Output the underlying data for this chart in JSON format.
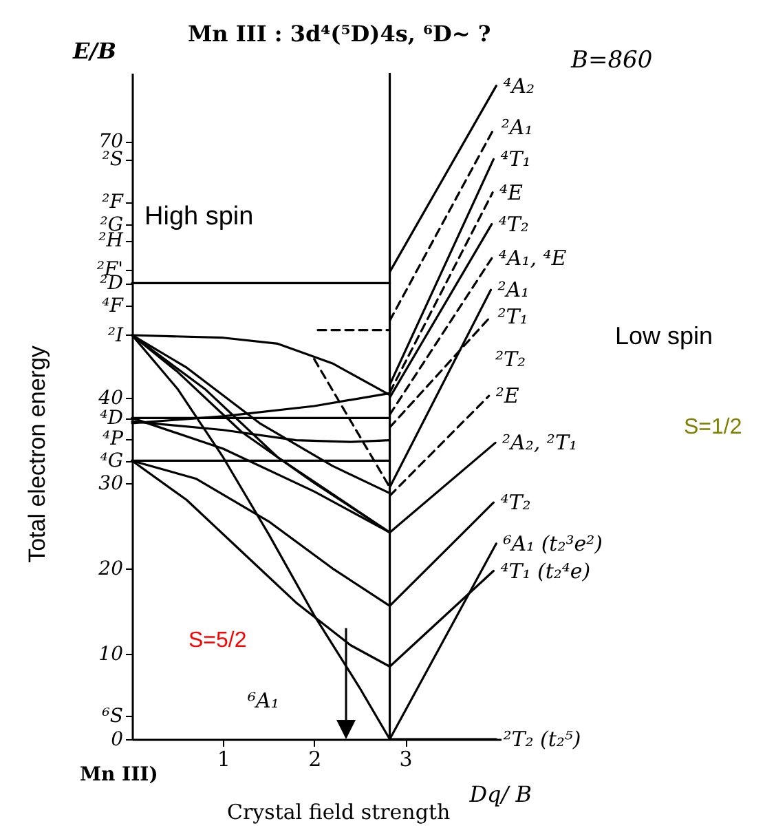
{
  "chart_data": {
    "type": "line",
    "title": "Mn III : 3d⁴(⁵D)4s, ⁶D~ ?",
    "xlabel": "Dq/ B",
    "ylabel": "E/B",
    "xlim": [
      0,
      4.05
    ],
    "xticks": [
      1,
      2,
      3
    ],
    "ylim": [
      0,
      78
    ],
    "yticks": [
      0,
      {
        "value": 2.7,
        "label": "⁶S"
      },
      10,
      20,
      30,
      {
        "value": 32.6,
        "label": "⁴G"
      },
      {
        "value": 35.2,
        "label": "⁴P"
      },
      {
        "value": 37.6,
        "label": "⁴D"
      },
      40,
      {
        "value": 47.3,
        "label": "²I"
      },
      {
        "value": 50.8,
        "label": "⁴F"
      },
      {
        "value": 53.4,
        "label": "²D"
      },
      {
        "value": 55,
        "label": "²F'"
      },
      {
        "value": 58.4,
        "label": "²H"
      },
      {
        "value": 60.3,
        "label": "²G"
      },
      {
        "value": 62.9,
        "label": "²F"
      },
      {
        "value": 67.9,
        "label": "²S"
      },
      70
    ],
    "grid": false,
    "marker": "none",
    "ref_lines": [
      {
        "axis": "x",
        "value": 2.83
      }
    ],
    "series": [
      {
        "color": "#000000",
        "line_style": "solid",
        "x": [
          0,
          2.83
        ],
        "values": [
          53.4,
          53.4
        ]
      },
      {
        "color": "#000000",
        "line_style": "solid",
        "x": [
          0,
          2.83
        ],
        "values": [
          37.6,
          37.6
        ]
      },
      {
        "color": "#000000",
        "line_style": "solid",
        "x": [
          0,
          2.83
        ],
        "values": [
          32.6,
          32.6
        ]
      },
      {
        "color": "#000000",
        "line_style": "solid",
        "x": [
          0,
          1,
          1.6,
          2.2,
          2.83
        ],
        "values": [
          47.3,
          47,
          46.3,
          44,
          40.3
        ]
      },
      {
        "color": "#000000",
        "line_style": "solid",
        "x": [
          0,
          1,
          2,
          2.83
        ],
        "values": [
          37,
          37.8,
          39,
          40.5
        ]
      },
      {
        "color": "#000000",
        "line_style": "solid",
        "x": [
          0,
          1,
          1.8,
          2.4,
          2.83
        ],
        "values": [
          37.2,
          36.2,
          35,
          34.8,
          35
        ]
      },
      {
        "color": "#000000",
        "line_style": "solid",
        "x": [
          0,
          0.5,
          1.2,
          2,
          2.83
        ],
        "values": [
          47.3,
          43,
          36,
          30,
          24.2
        ]
      },
      {
        "color": "#000000",
        "line_style": "solid",
        "x": [
          0,
          0.8,
          1.6,
          2.83
        ],
        "values": [
          47.3,
          41,
          33,
          24.2
        ]
      },
      {
        "color": "#000000",
        "line_style": "solid",
        "x": [
          0,
          0.6,
          1.4,
          2.2,
          2.83
        ],
        "values": [
          47.3,
          43.5,
          37,
          32,
          28.8
        ]
      },
      {
        "color": "#000000",
        "line_style": "solid",
        "x": [
          0,
          0.5,
          1,
          1.5,
          2,
          2.5,
          2.83
        ],
        "values": [
          47.3,
          41,
          33,
          24,
          14.5,
          6,
          0
        ]
      },
      {
        "color": "#000000",
        "line_style": "solid",
        "x": [
          0,
          0.7,
          1.5,
          2.2,
          2.83
        ],
        "values": [
          32.6,
          30.5,
          25.5,
          20,
          15.6
        ]
      },
      {
        "color": "#000000",
        "line_style": "solid",
        "x": [
          0,
          0.6,
          1.2,
          1.8,
          2.4,
          2.83
        ],
        "values": [
          32.6,
          28,
          22,
          16,
          11,
          8.5
        ]
      },
      {
        "color": "#000000",
        "line_style": "solid",
        "x": [
          0,
          1,
          2,
          2.83
        ],
        "values": [
          37.6,
          34,
          29,
          24.2
        ]
      },
      {
        "color": "#000000",
        "line_style": "dashed",
        "x": [
          2.04,
          2.83
        ],
        "values": [
          47.9,
          47.9
        ]
      },
      {
        "color": "#000000",
        "line_style": "dashed",
        "x": [
          2.0,
          2.83
        ],
        "values": [
          44.5,
          29.5
        ]
      },
      {
        "name": "⁴A₂",
        "color": "#000000",
        "line_style": "solid",
        "x": [
          2.83,
          4.0
        ],
        "values": [
          54.7,
          76.5
        ]
      },
      {
        "name": "²A₁",
        "color": "#000000",
        "line_style": "dashed",
        "x": [
          2.83,
          3.98
        ],
        "values": [
          49,
          71.6
        ]
      },
      {
        "name": "⁴T₁",
        "color": "#000000",
        "line_style": "solid",
        "x": [
          2.83,
          3.97
        ],
        "values": [
          41.5,
          67.9
        ]
      },
      {
        "name": "⁴E",
        "color": "#000000",
        "line_style": "dashed",
        "x": [
          2.83,
          3.96
        ],
        "values": [
          40.6,
          64
        ]
      },
      {
        "name": "⁴T₂",
        "color": "#000000",
        "line_style": "solid",
        "x": [
          2.83,
          3.95
        ],
        "values": [
          40,
          60.3
        ]
      },
      {
        "name": "⁴A₁, ⁴E",
        "color": "#000000",
        "line_style": "dashed",
        "x": [
          2.83,
          3.95
        ],
        "values": [
          38,
          56.3
        ]
      },
      {
        "name": "²A₁",
        "color": "#000000",
        "line_style": "solid",
        "x": [
          2.83,
          3.94
        ],
        "values": [
          29.5,
          52.6
        ]
      },
      {
        "name": "²T₁",
        "color": "#000000",
        "line_style": "dashed",
        "x": [
          2.83,
          3.94
        ],
        "values": [
          36.5,
          49.5
        ]
      },
      {
        "name": "²E",
        "color": "#000000",
        "line_style": "dashed",
        "x": [
          2.83,
          3.92
        ],
        "values": [
          28.5,
          40.2
        ]
      },
      {
        "name": "²A₂, ²T₁",
        "color": "#000000",
        "line_style": "solid",
        "x": [
          2.83,
          3.99
        ],
        "values": [
          24.2,
          34.7
        ]
      },
      {
        "name": "⁴T₂",
        "color": "#000000",
        "line_style": "solid",
        "x": [
          2.83,
          3.97
        ],
        "values": [
          15.6,
          27.7
        ]
      },
      {
        "name": "⁶A₁ (t₂³e²)",
        "color": "#000000",
        "line_style": "solid",
        "x": [
          2.83,
          4.0
        ],
        "values": [
          0,
          22.9
        ]
      },
      {
        "name": "⁴T₁ (t₂⁴e)",
        "color": "#000000",
        "line_style": "solid",
        "x": [
          2.83,
          3.97
        ],
        "values": [
          8.5,
          19.7
        ]
      },
      {
        "name": "²T₂ (t₂⁵)",
        "color": "#000000",
        "line_style": "solid",
        "x": [
          2.83,
          4.0
        ],
        "values": [
          0,
          0
        ]
      }
    ],
    "annotations": [
      "B=860",
      "High spin",
      "Low spin",
      "S=1/2",
      "S=5/2",
      "Total electron energy",
      "Crystal field strength",
      "Mn III)",
      "⁶A₁",
      "²T₂"
    ]
  }
}
